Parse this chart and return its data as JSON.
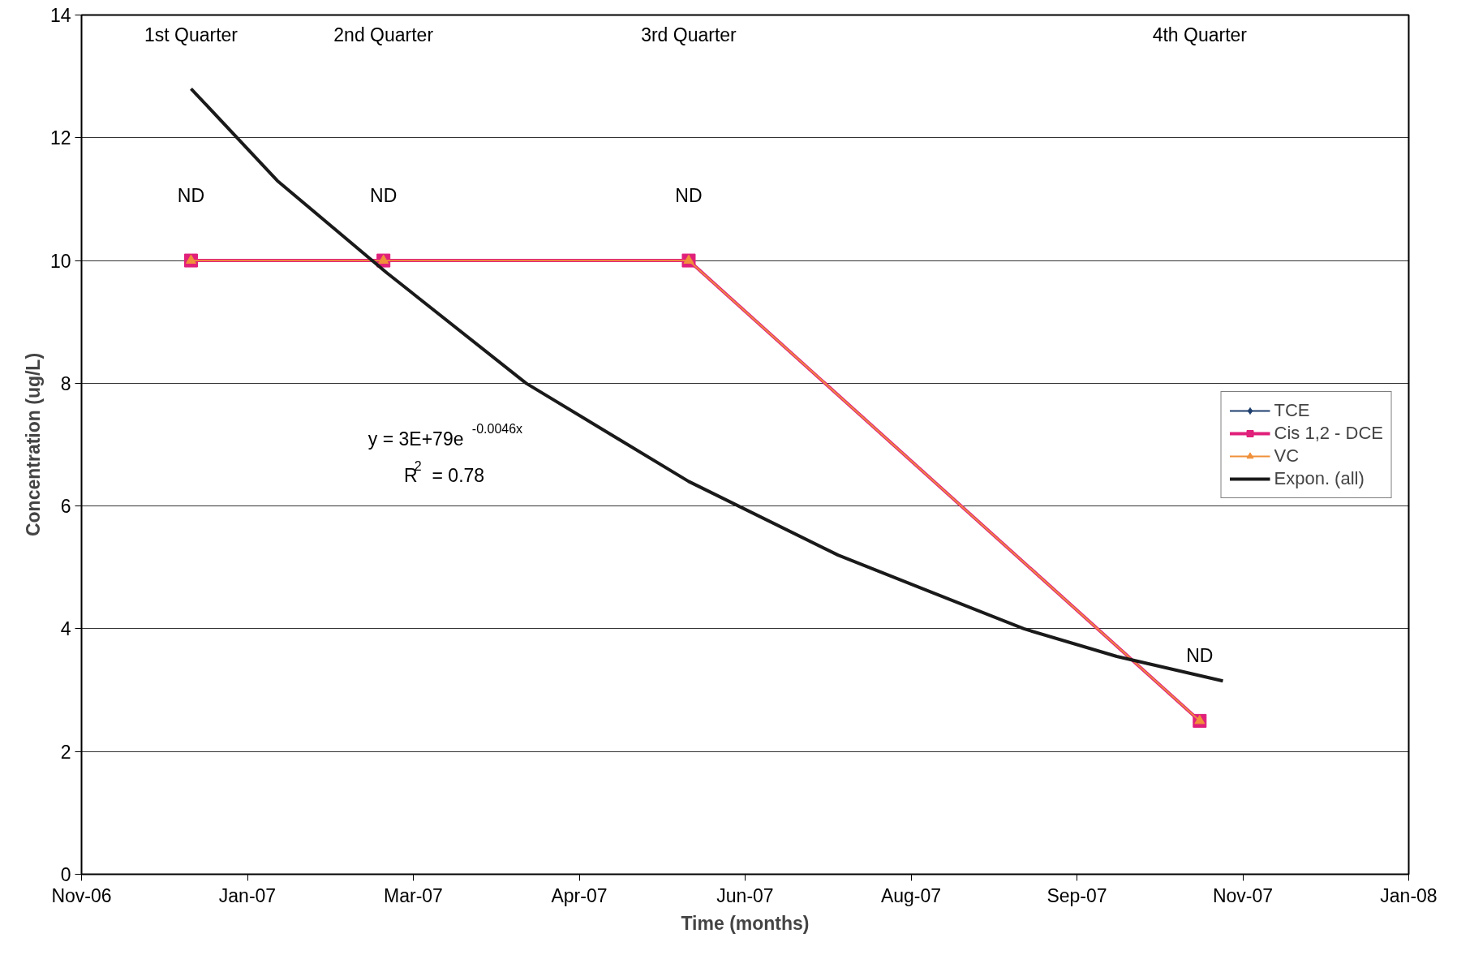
{
  "chart_data": {
    "type": "line",
    "xlabel": "Time (months)",
    "ylabel": "Concentration (ug/L)",
    "x": [
      "2006-12-31",
      "2007-02-27",
      "2007-05-30",
      "2007-10-31"
    ],
    "series": [
      {
        "name": "TCE",
        "color": "#1f3f6e",
        "marker": "diamond",
        "values": [
          null,
          null,
          null,
          null
        ]
      },
      {
        "name": "Cis 1,2 - DCE",
        "color": "#e0207a",
        "marker": "square",
        "values": [
          10,
          10,
          10,
          2.5
        ]
      },
      {
        "name": "VC",
        "color": "#f0903a",
        "marker": "triangle",
        "values": [
          10,
          10,
          10,
          2.5
        ]
      },
      {
        "name": "Expon. (all)",
        "color": "#1a1a1a",
        "marker": "none",
        "x": [
          "2006-12-31",
          "2007-01-26",
          "2007-02-28",
          "2007-04-11",
          "2007-05-30",
          "2007-07-14",
          "2007-08-11",
          "2007-09-08",
          "2007-10-06",
          "2007-11-07"
        ],
        "values": [
          12.8,
          11.3,
          9.8,
          8.0,
          6.4,
          5.2,
          4.6,
          4.0,
          3.55,
          3.15
        ]
      }
    ],
    "xlim": [
      "2006-11-28",
      "2008-01-02"
    ],
    "xticks": [
      {
        "value": "2006-11-28",
        "label": "Nov-06"
      },
      {
        "value": "2007-01-17",
        "label": "Jan-07"
      },
      {
        "value": "2007-03-08",
        "label": "Mar-07"
      },
      {
        "value": "2007-04-27",
        "label": "Apr-07"
      },
      {
        "value": "2007-06-16",
        "label": "Jun-07"
      },
      {
        "value": "2007-08-05",
        "label": "Aug-07"
      },
      {
        "value": "2007-09-24",
        "label": "Sep-07"
      },
      {
        "value": "2007-11-13",
        "label": "Nov-07"
      },
      {
        "value": "2008-01-02",
        "label": "Jan-08"
      }
    ],
    "ylim": [
      0,
      14
    ],
    "yticks": [
      0,
      2,
      4,
      6,
      8,
      10,
      12,
      14
    ],
    "grid": "y",
    "legend": "right",
    "annotations": [
      "1st Quarter",
      "2nd Quarter",
      "3rd Quarter",
      "4th Quarter",
      {
        "text": "ND",
        "x": "2006-12-31",
        "y": 10
      },
      {
        "text": "ND",
        "x": "2007-02-27",
        "y": 10
      },
      {
        "text": "ND",
        "x": "2007-05-30",
        "y": 10
      },
      {
        "text": "ND",
        "x": "2007-10-31",
        "y": 2.5
      },
      "y = 3E+79e$^{-0.0046x}$",
      "R$^{2}$ = 0.78"
    ]
  }
}
